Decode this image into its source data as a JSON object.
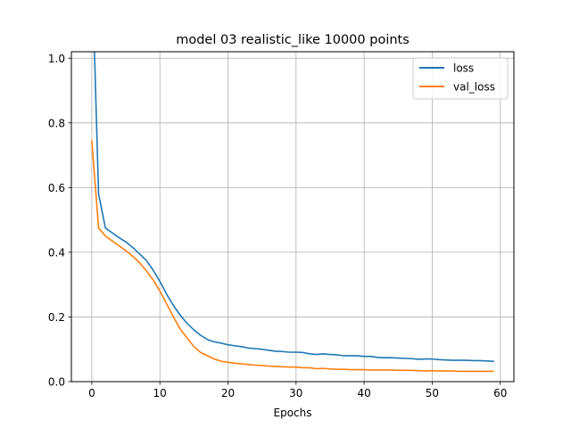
{
  "chart_data": {
    "type": "line",
    "title": "model 03 realistic_like 10000 points",
    "xlabel": "Epochs",
    "ylabel": "",
    "xlim": [
      -3,
      62
    ],
    "ylim": [
      0,
      1.02
    ],
    "xticks": [
      0,
      10,
      20,
      30,
      40,
      50,
      60
    ],
    "yticks": [
      0.0,
      0.2,
      0.4,
      0.6,
      0.8,
      1.0
    ],
    "xtick_labels": [
      "0",
      "10",
      "20",
      "30",
      "40",
      "50",
      "60"
    ],
    "ytick_labels": [
      "0.0",
      "0.2",
      "0.4",
      "0.6",
      "0.8",
      "1.0"
    ],
    "grid": true,
    "legend_position": "top-right",
    "x": [
      0,
      1,
      2,
      3,
      4,
      5,
      6,
      7,
      8,
      9,
      10,
      11,
      12,
      13,
      14,
      15,
      16,
      17,
      18,
      19,
      20,
      21,
      22,
      23,
      24,
      25,
      26,
      27,
      28,
      29,
      30,
      31,
      32,
      33,
      34,
      35,
      36,
      37,
      38,
      39,
      40,
      41,
      42,
      43,
      44,
      45,
      46,
      47,
      48,
      49,
      50,
      51,
      52,
      53,
      54,
      55,
      56,
      57,
      58,
      59
    ],
    "series": [
      {
        "name": "loss",
        "color": "#1f77b4",
        "values": [
          1.3,
          0.58,
          0.475,
          0.46,
          0.445,
          0.432,
          0.415,
          0.395,
          0.375,
          0.345,
          0.31,
          0.27,
          0.235,
          0.205,
          0.18,
          0.16,
          0.143,
          0.13,
          0.123,
          0.119,
          0.114,
          0.111,
          0.108,
          0.104,
          0.102,
          0.1,
          0.097,
          0.094,
          0.093,
          0.091,
          0.091,
          0.09,
          0.086,
          0.084,
          0.086,
          0.084,
          0.083,
          0.08,
          0.08,
          0.08,
          0.078,
          0.078,
          0.075,
          0.074,
          0.074,
          0.073,
          0.072,
          0.071,
          0.069,
          0.07,
          0.07,
          0.068,
          0.067,
          0.066,
          0.066,
          0.066,
          0.065,
          0.065,
          0.064,
          0.063
        ]
      },
      {
        "name": "val_loss",
        "color": "#ff7f0e",
        "values": [
          0.745,
          0.475,
          0.45,
          0.435,
          0.42,
          0.405,
          0.388,
          0.368,
          0.343,
          0.315,
          0.28,
          0.24,
          0.2,
          0.162,
          0.135,
          0.108,
          0.09,
          0.08,
          0.07,
          0.063,
          0.06,
          0.057,
          0.055,
          0.053,
          0.051,
          0.05,
          0.048,
          0.047,
          0.046,
          0.045,
          0.045,
          0.043,
          0.043,
          0.04,
          0.041,
          0.039,
          0.038,
          0.038,
          0.037,
          0.037,
          0.037,
          0.036,
          0.036,
          0.036,
          0.036,
          0.035,
          0.035,
          0.035,
          0.034,
          0.033,
          0.034,
          0.033,
          0.033,
          0.033,
          0.032,
          0.032,
          0.032,
          0.032,
          0.032,
          0.032
        ]
      }
    ]
  }
}
